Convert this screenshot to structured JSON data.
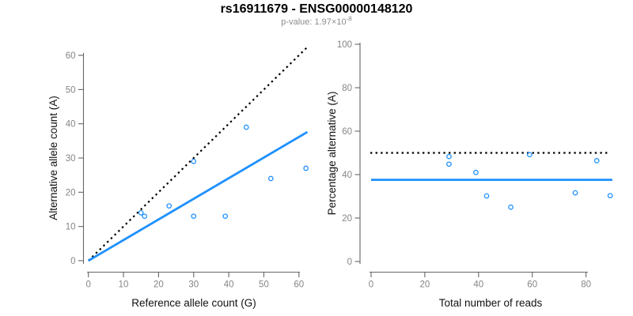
{
  "header": {
    "title": "rs16911679 - ENSG00000148120",
    "subtitle_text": "p-value: 1.97×10",
    "subtitle_exponent": "-8"
  },
  "colors": {
    "accent_blue": "#1E90FF",
    "line_black": "#000000",
    "axis_gray": "#666666",
    "tick_label_gray": "#858585",
    "axis_title_color": "#111111",
    "subtitle_gray": "#8C8C8C",
    "background": "#FFFFFF"
  },
  "chart_data": [
    {
      "type": "scatter",
      "panel": "allele-counts",
      "xlabel": "Reference allele count (G)",
      "ylabel": "Alternative allele count (A)",
      "xlim": [
        0,
        62.4
      ],
      "ylim": [
        0,
        62.4
      ],
      "xticks": [
        0,
        10,
        20,
        30,
        40,
        50,
        60
      ],
      "yticks": [
        0,
        10,
        20,
        30,
        40,
        50,
        60
      ],
      "grid": false,
      "marker": "open-circle",
      "points": [
        [
          15,
          14
        ],
        [
          16,
          13
        ],
        [
          23,
          16
        ],
        [
          30,
          13
        ],
        [
          30,
          29
        ],
        [
          39,
          13
        ],
        [
          45,
          39
        ],
        [
          52,
          24
        ],
        [
          62,
          27
        ]
      ],
      "lines": [
        {
          "name": "identity-line",
          "style": "dotted",
          "color": "#000000",
          "from": [
            0,
            0
          ],
          "to": [
            62.4,
            62.4
          ]
        },
        {
          "name": "regression-line",
          "style": "solid",
          "color": "#1E90FF",
          "from": [
            0,
            0
          ],
          "to": [
            62.4,
            37.6
          ]
        }
      ]
    },
    {
      "type": "scatter",
      "panel": "percentage-vs-coverage",
      "xlabel": "Total number of reads",
      "ylabel": "Percentage alternative (A)",
      "xlim": [
        0,
        92
      ],
      "ylim": [
        0,
        102
      ],
      "xticks": [
        0,
        20,
        40,
        60,
        80
      ],
      "yticks": [
        0,
        20,
        40,
        60,
        80,
        100
      ],
      "grid": false,
      "marker": "open-circle",
      "points": [
        [
          29,
          48.3
        ],
        [
          29,
          44.8
        ],
        [
          39,
          41
        ],
        [
          43,
          30.2
        ],
        [
          52,
          25
        ],
        [
          59,
          49.2
        ],
        [
          76,
          31.6
        ],
        [
          84,
          46.4
        ],
        [
          89,
          30.3
        ]
      ],
      "lines": [
        {
          "name": "fifty-percent-line",
          "style": "dotted",
          "color": "#000000",
          "from": [
            -0.3,
            50
          ],
          "to": [
            88,
            50
          ]
        },
        {
          "name": "mean-percentage-line",
          "style": "solid",
          "color": "#1E90FF",
          "from": [
            0,
            37.6
          ],
          "to": [
            89.8,
            37.6
          ]
        }
      ]
    }
  ]
}
